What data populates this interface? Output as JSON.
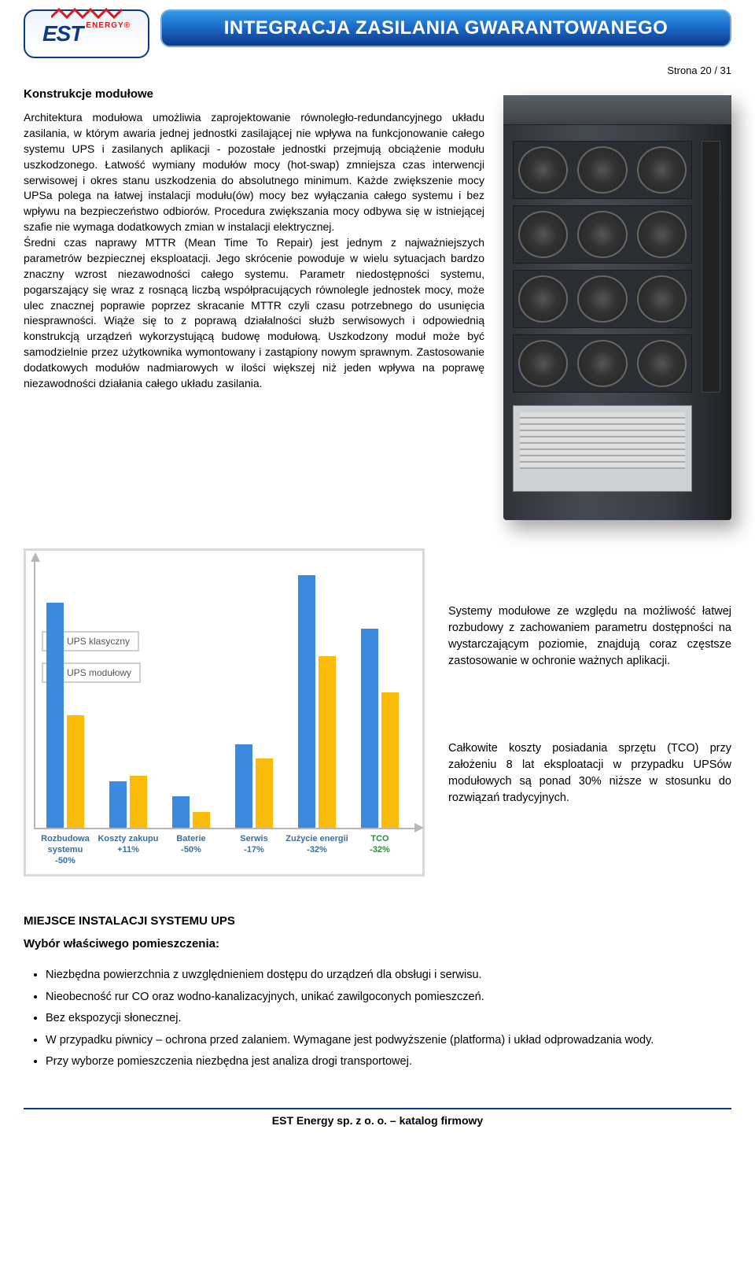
{
  "header": {
    "logo_main": "EST",
    "logo_sub": "ENERGY®",
    "title": "INTEGRACJA ZASILANIA GWARANTOWANEGO",
    "page_indicator": "Strona 20 / 31"
  },
  "section1": {
    "heading": "Konstrukcje modułowe",
    "body": "Architektura modułowa umożliwia zaprojektowanie równoległo-redundancyjnego układu zasilania, w którym awaria jednej jednostki zasilającej nie wpływa na funkcjonowanie całego systemu UPS i zasilanych aplikacji - pozostałe jednostki przejmują obciążenie modułu uszkodzonego. Łatwość wymiany modułów mocy (hot-swap) zmniejsza czas interwencji serwisowej i okres stanu uszkodzenia do absolutnego minimum. Każde zwiększenie mocy UPSa polega na łatwej instalacji modułu(ów) mocy bez wyłączania całego systemu i bez wpływu na bezpieczeństwo odbiorów. Procedura zwiększania mocy odbywa się w istniejącej szafie nie wymaga dodatkowych zmian w instalacji elektrycznej.\nŚredni czas naprawy MTTR (Mean Time To Repair) jest jednym z najważniejszych parametrów bezpiecznej eksploatacji. Jego skrócenie powoduje w wielu sytuacjach bardzo znaczny wzrost niezawodności całego systemu. Parametr niedostępności systemu, pogarszający się wraz z rosnącą liczbą współpracujących równolegle jednostek mocy, może ulec znacznej poprawie poprzez skracanie MTTR czyli czasu potrzebnego do usunięcia niesprawności. Wiąże się to z poprawą działalności służb serwisowych i odpowiednią konstrukcją urządzeń wykorzystującą budowę modułową. Uszkodzony moduł może być samodzielnie przez użytkownika wymontowany i zastąpiony nowym sprawnym. Zastosowanie dodatkowych modułów nadmiarowych w ilości większej niż jeden wpływa na poprawę niezawodności działania całego układu zasilania."
  },
  "chart": {
    "type": "bar",
    "legend": {
      "klasyczny": "UPS klasyczny",
      "modulowy": "UPS modułowy"
    },
    "colors": {
      "klasyczny": "#3b8adf",
      "modulowy": "#fabc09",
      "axis": "#b7b7b7",
      "legend_border": "#d0d0d0",
      "label_text": "#2d4e6b",
      "tco_text": "#2e8a3a"
    },
    "ylim": 300,
    "categories": [
      {
        "name": "Rozbudowa systemu",
        "delta": "-50%",
        "klas": 260,
        "mod": 130,
        "color": "#3b6e9f"
      },
      {
        "name": "Koszty zakupu",
        "delta": "+11%",
        "klas": 54,
        "mod": 60,
        "color": "#3b6e9f"
      },
      {
        "name": "Baterie",
        "delta": "-50%",
        "klas": 36,
        "mod": 18,
        "color": "#3b6e9f"
      },
      {
        "name": "Serwis",
        "delta": "-17%",
        "klas": 96,
        "mod": 80,
        "color": "#3b6e9f"
      },
      {
        "name": "Zużycie energii",
        "delta": "-32%",
        "klas": 292,
        "mod": 198,
        "color": "#3b6e9f"
      },
      {
        "name": "TCO",
        "delta": "-32%",
        "klas": 230,
        "mod": 156,
        "color": "#2e8a3a"
      }
    ]
  },
  "side_paras": {
    "p1": "Systemy modułowe ze względu na możliwość łatwej rozbudowy z zachowaniem parametru dostępności na wystarczającym poziomie, znajdują coraz częstsze zastosowanie w ochronie ważnych aplikacji.",
    "p2": "Całkowite koszty posiadania sprzętu (TCO) przy założeniu 8 lat eksploatacji w przypadku UPSów modułowych są ponad 30% niższe w stosunku do rozwiązań tradycyjnych."
  },
  "section2": {
    "heading": "MIEJSCE INSTALACJI SYSTEMU UPS",
    "sub": "Wybór właściwego pomieszczenia:",
    "bullets": [
      "Niezbędna powierzchnia z uwzględnieniem dostępu do urządzeń dla obsługi i serwisu.",
      "Nieobecność rur CO oraz wodno-kanalizacyjnych, unikać zawilgoconych pomieszczeń.",
      "Bez ekspozycji słonecznej.",
      "W przypadku piwnicy – ochrona przed zalaniem. Wymagane jest podwyższenie (platforma) i układ odprowadzania wody.",
      "Przy wyborze pomieszczenia niezbędna jest analiza drogi transportowej."
    ]
  },
  "footer": "EST Energy sp. z o. o. – katalog firmowy"
}
